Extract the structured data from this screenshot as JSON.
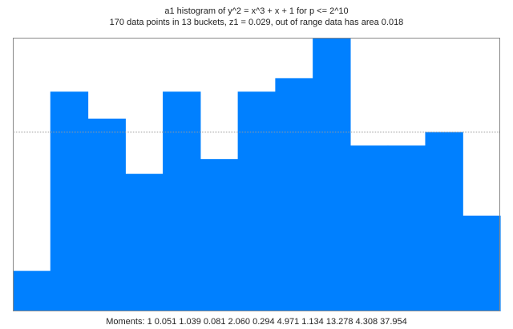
{
  "chart_data": {
    "type": "bar",
    "title": "a1 histogram of y^2 = x^3 + x + 1 for p <= 2^10",
    "subtitle": "170 data points in 13 buckets, z1 = 0.029, out of range data has area 0.018",
    "bar_color": "#0080ff",
    "reference_line_color": "#9a9a9a",
    "values": [
      0.3,
      1.63,
      1.43,
      1.02,
      1.63,
      1.13,
      1.63,
      1.73,
      2.03,
      1.23,
      1.23,
      1.33,
      0.71
    ],
    "reference_value": 1.33,
    "ylim": [
      0,
      2.03
    ],
    "grid": false,
    "moments": "Moments: 1   0.051   1.039   0.081   2.060   0.294   4.971   1.134   13.278   4.308   37.954"
  }
}
